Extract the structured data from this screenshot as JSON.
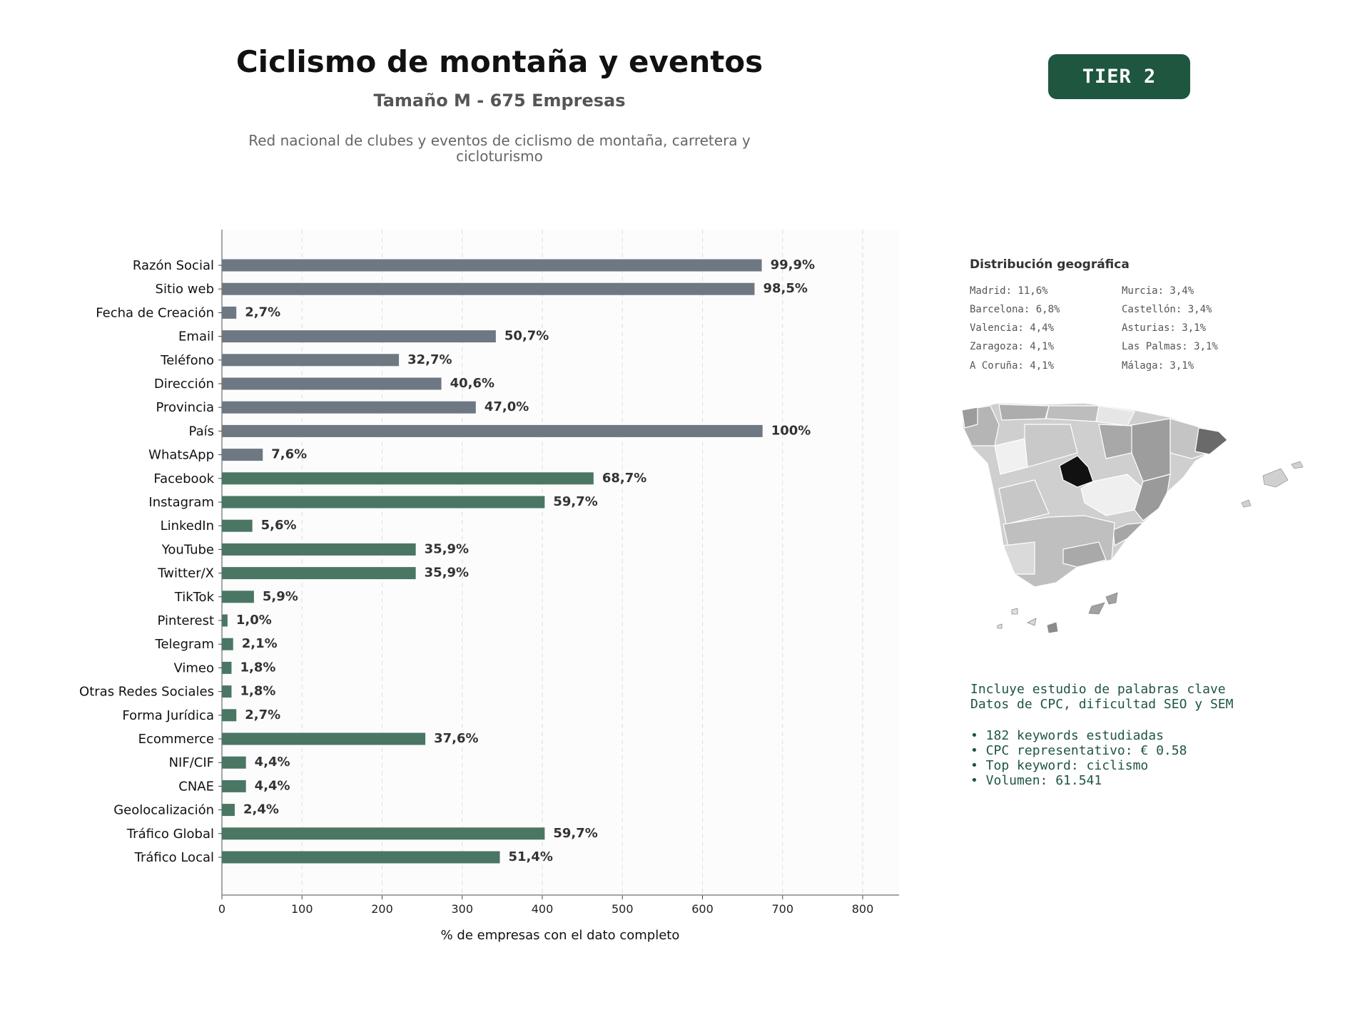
{
  "header": {
    "title": "Ciclismo de montaña y eventos",
    "subtitle": "Tamaño M - 675 Empresas",
    "description": "Red nacional de clubes y eventos de ciclismo de montaña, carretera y cicloturismo",
    "tier": "TIER 2"
  },
  "colors": {
    "accent": "#1e5640",
    "bar_gray": "#6e7883",
    "bar_green": "#4a7664"
  },
  "chart_data": {
    "type": "bar",
    "orientation": "horizontal",
    "xlabel": "% de empresas con el dato completo",
    "xlim": [
      0,
      845
    ],
    "xticks": [
      "0",
      "100",
      "200",
      "300",
      "400",
      "500",
      "600",
      "700",
      "800"
    ],
    "grid": "vertical dashed",
    "categories": [
      "Razón Social",
      "Sitio web",
      "Fecha de Creación",
      "Email",
      "Teléfono",
      "Dirección",
      "Provincia",
      "País",
      "WhatsApp",
      "Facebook",
      "Instagram",
      "LinkedIn",
      "YouTube",
      "Twitter/X",
      "TikTok",
      "Pinterest",
      "Telegram",
      "Vimeo",
      "Otras Redes Sociales",
      "Forma Jurídica",
      "Ecommerce",
      "NIF/CIF",
      "CNAE",
      "Geolocalización",
      "Tráfico Global",
      "Tráfico Local"
    ],
    "values": [
      674,
      665,
      18,
      342,
      221,
      274,
      317,
      675,
      51,
      464,
      403,
      38,
      242,
      242,
      40,
      7,
      14,
      12,
      12,
      18,
      254,
      30,
      30,
      16,
      403,
      347
    ],
    "labels": [
      "99,9%",
      "98,5%",
      "2,7%",
      "50,7%",
      "32,7%",
      "40,6%",
      "47,0%",
      "100%",
      "7,6%",
      "68,7%",
      "59,7%",
      "5,6%",
      "35,9%",
      "35,9%",
      "5,9%",
      "1,0%",
      "2,1%",
      "1,8%",
      "1,8%",
      "2,7%",
      "37,6%",
      "4,4%",
      "4,4%",
      "2,4%",
      "59,7%",
      "51,4%"
    ],
    "color_groups": [
      "gray",
      "gray",
      "gray",
      "gray",
      "gray",
      "gray",
      "gray",
      "gray",
      "gray",
      "green",
      "green",
      "green",
      "green",
      "green",
      "green",
      "green",
      "green",
      "green",
      "green",
      "green",
      "green",
      "green",
      "green",
      "green",
      "green",
      "green"
    ]
  },
  "geo": {
    "title": "Distribución geográfica",
    "left": [
      "Madrid: 11,6%",
      "Barcelona: 6,8%",
      "Valencia: 4,4%",
      "Zaragoza: 4,1%",
      "A Coruña: 4,1%"
    ],
    "right": [
      "Murcia: 3,4%",
      "Castellón: 3,4%",
      "Asturias: 3,1%",
      "Las Palmas: 3,1%",
      "Málaga: 3,1%"
    ]
  },
  "seo": {
    "line1": "Incluye estudio de palabras clave",
    "line2": "Datos de CPC, dificultad SEO y SEM",
    "bullets": [
      "• 182 keywords estudiadas",
      "• CPC representativo: € 0.58",
      "• Top keyword: ciclismo",
      "• Volumen: 61.541"
    ]
  }
}
